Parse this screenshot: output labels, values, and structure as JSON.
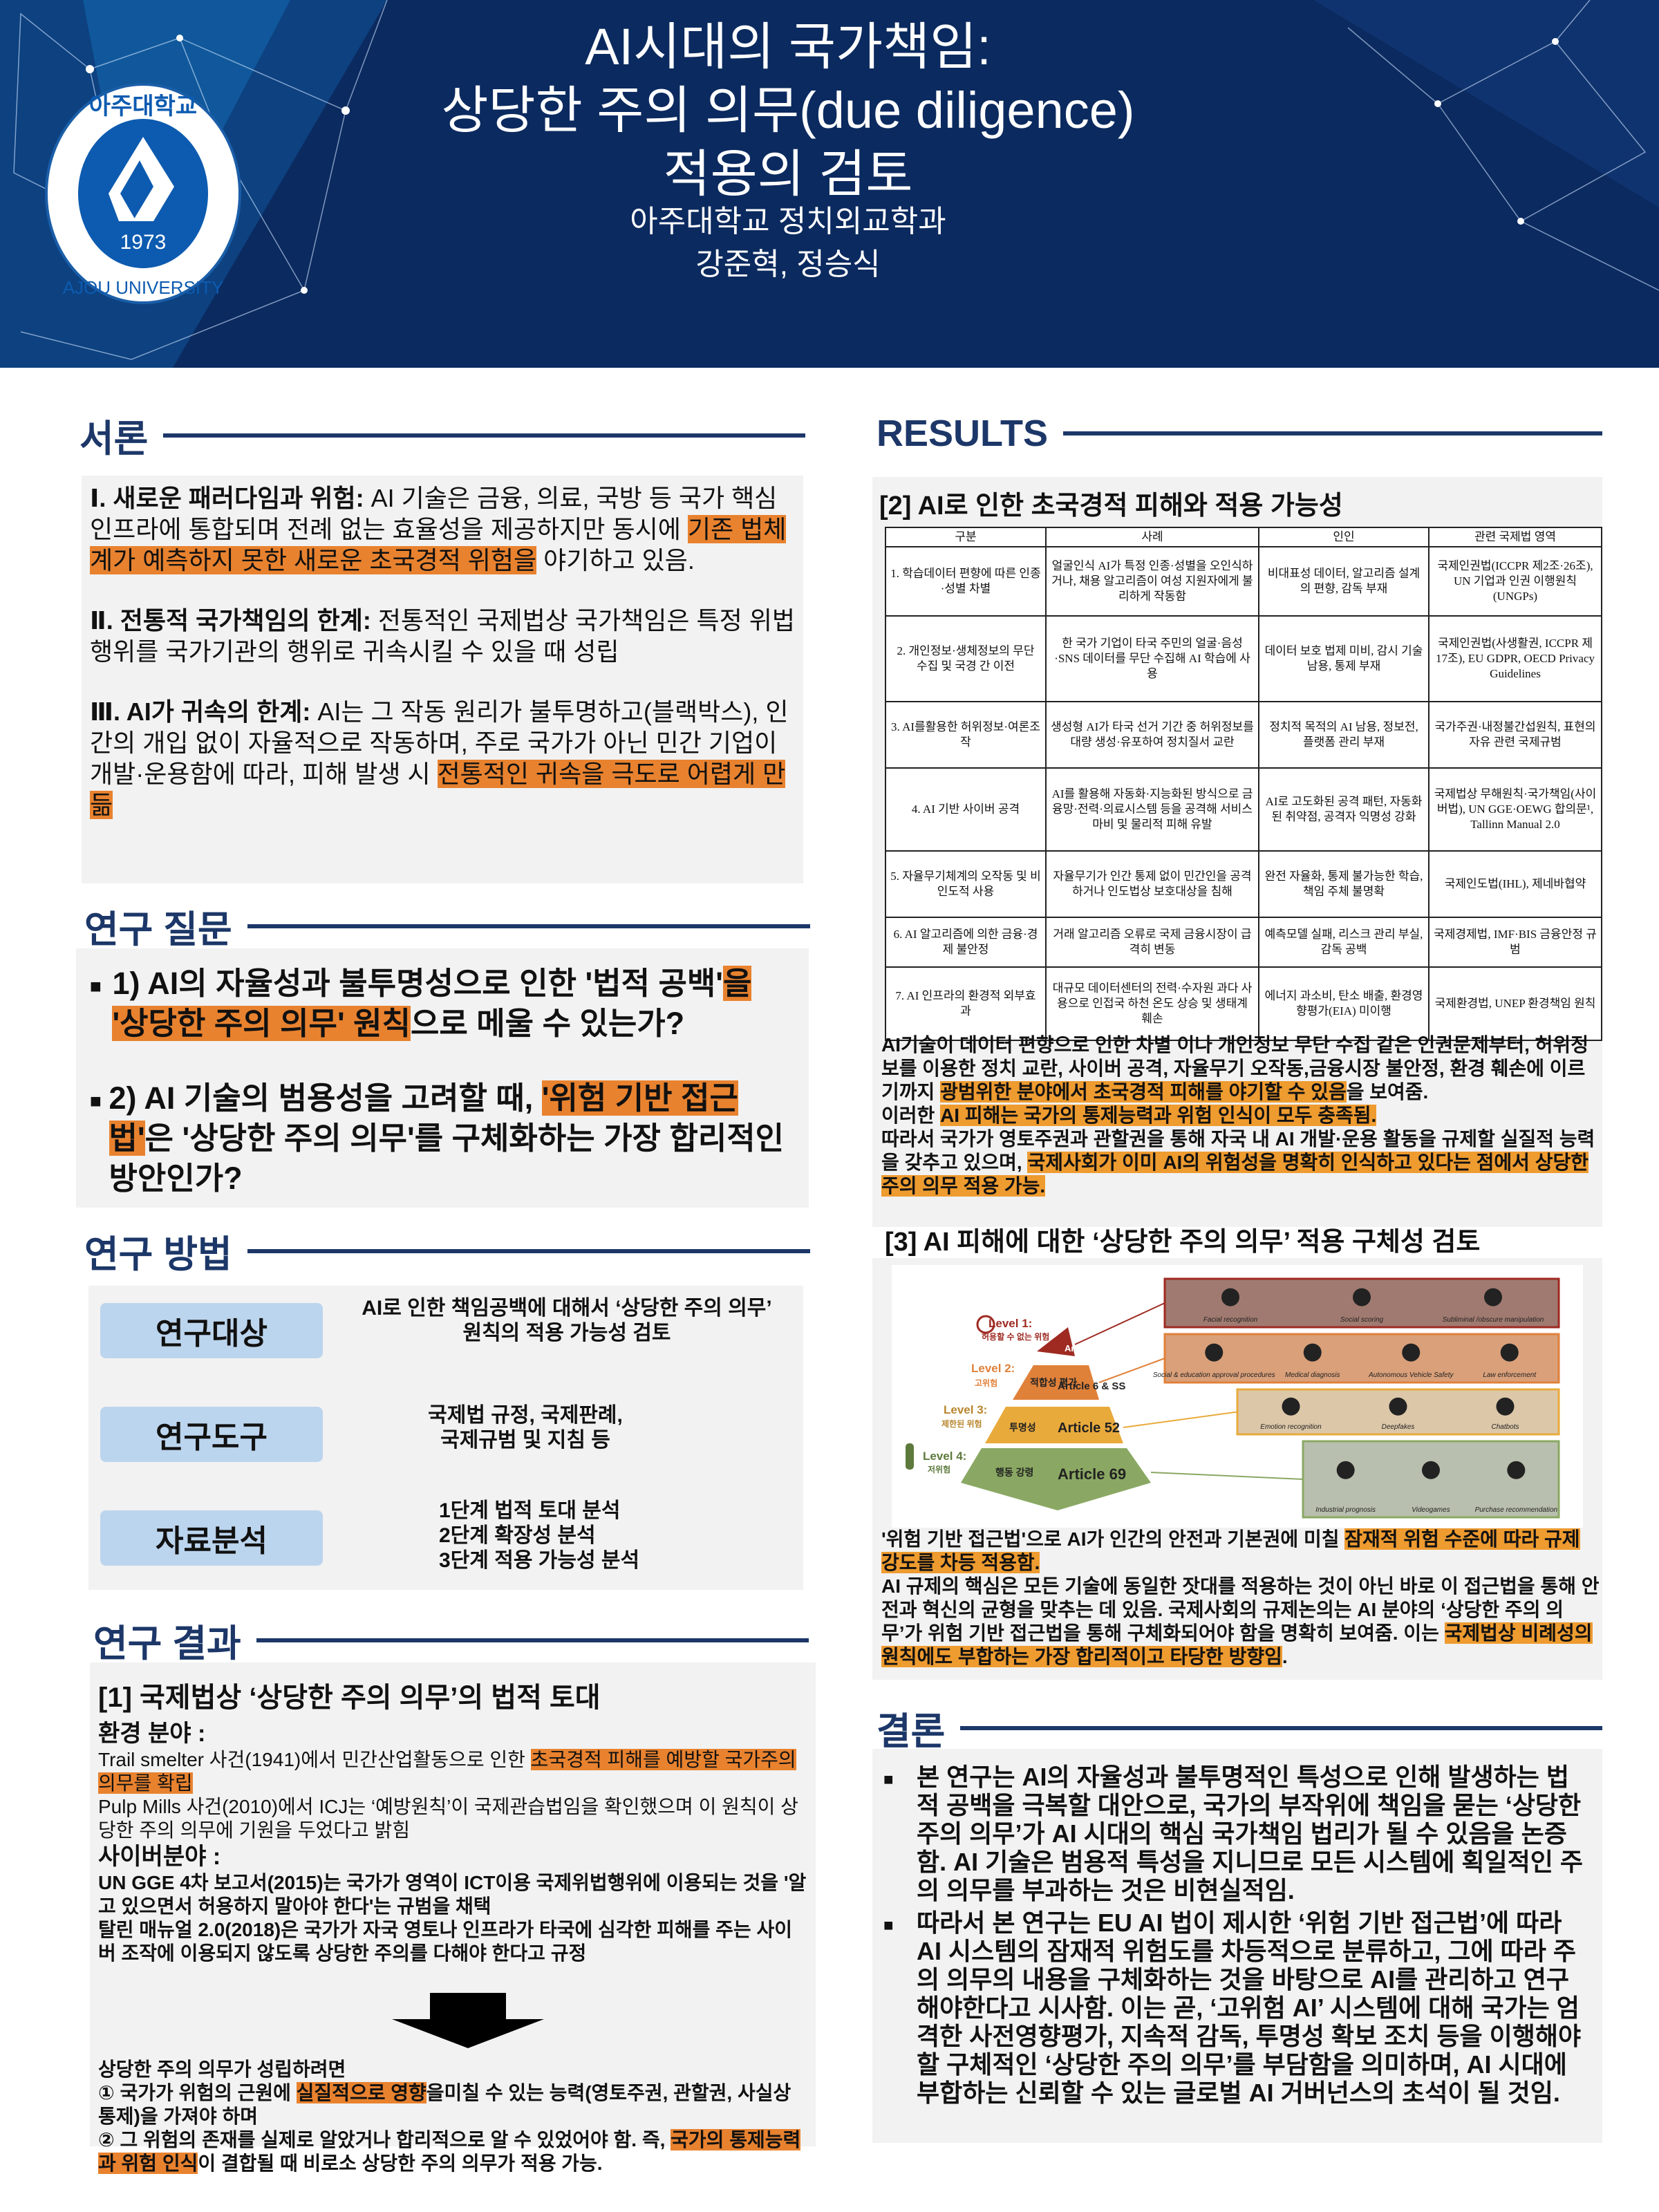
{
  "header": {
    "title_lines": [
      "AI시대의 국가책임:",
      "상당한 주의 의무(due diligence)",
      "적용의 검토"
    ],
    "affiliation": "아주대학교 정치외교학과",
    "authors": "강준혁, 정승식",
    "logo": {
      "korean": "아주대학교",
      "english": "AJOU UNIVERSITY",
      "year": "1973"
    }
  },
  "colors": {
    "navy": "#0b2a5f",
    "heading": "#1c3768",
    "highlight_left": "#e8822f",
    "highlight_right": "#ee9b30",
    "label_blue": "#bcd5ee"
  },
  "intro": {
    "heading": "서론",
    "paragraphs": [
      [
        {
          "t": "Ⅰ. 새로운 패러다임과 위험: ",
          "b": true
        },
        {
          "t": "AI 기술은 금융, 의료, 국방 등 국가 핵심 인프라에 통합되며 전례 없는 효율성을 제공하지만 동시에 "
        },
        {
          "t": "기존 법체계가 예측하지 못한 새로운 초국경적 위험을",
          "hl": true
        },
        {
          "t": " 야기하고 있음."
        }
      ],
      [
        {
          "t": "Ⅱ. 전통적 국가책임의 한계: ",
          "b": true
        },
        {
          "t": "전통적인 국제법상 국가책임은 특정 위법행위를 국가기관의 행위로 귀속시킬 수 있을 때 성립"
        }
      ],
      [
        {
          "t": "Ⅲ. AI가 귀속의 한계: ",
          "b": true
        },
        {
          "t": "AI는 그 작동 원리가 불투명하고(블랙박스), 인간의 개입 없이 자율적으로 작동하며, 주로 국가가 아닌 민간 기업이 개발·운용함에 따라, 피해 발생 시 "
        },
        {
          "t": "전통적인 귀속을 극도로 어렵게 만듦",
          "hl": true
        }
      ]
    ]
  },
  "questions": {
    "heading": "연구 질문",
    "items": [
      [
        {
          "t": "1) AI의 자율성과 불투명성으로 인한 '법적 공백'"
        },
        {
          "t": "을 '상당한 주의 의무' 원칙",
          "hl": true
        },
        {
          "t": "으로 메울 수 있는가?"
        }
      ],
      [
        {
          "t": "2) AI 기술의 범용성을 고려할 때, "
        },
        {
          "t": "'위험 기반 접근법'",
          "hl": true
        },
        {
          "t": "은 '상당한 주의 의무'를 구체화하는 가장 합리적인 방안인가?"
        }
      ]
    ]
  },
  "methods": {
    "heading": "연구 방법",
    "rows": [
      {
        "label": "연구대상",
        "text": [
          "AI로 인한 책임공백에 대해서 ‘상당한 주의 의무’",
          "원칙의 적용 가능성 검토"
        ]
      },
      {
        "label": "연구도구",
        "text": [
          "국제법 규정, 국제판례,",
          "국제규범 및 지침 등"
        ]
      },
      {
        "label": "자료분석",
        "text": [
          "1단계  법적 토대 분석",
          "2단계  확장성 분석",
          "3단계  적용 가능성 분석"
        ]
      }
    ]
  },
  "results_left": {
    "heading": "연구 결과",
    "title": "[1] 국제법상 ‘상당한 주의 의무’의 법적 토대",
    "env_head": "환경 분야 :",
    "env": [
      [
        {
          "t": "Trail smelter 사건(1941)에서 민간산업활동으로 인한 "
        },
        {
          "t": "초국경적 피해를 예방할 국가주의의무를 확립",
          "hl": true
        }
      ],
      [
        {
          "t": "  Pulp Mills 사건(2010)에서 ICJ는 ‘예방원칙’이 국제관습법임을 확인했으며 이 원칙이 상당한 주의 의무에 기원을 두었다고 밝힘"
        }
      ]
    ],
    "cyber_head": "사이버분야 :",
    "cyber": [
      [
        {
          "t": "  UN GGE 4차 보고서(2015)는 국가가 영역이 ICT이용 국제위법행위에 이용되는 것을 '알고 있으면서 허용하지 말아야 한다'는 규범을 채택"
        }
      ],
      [
        {
          "t": "  탈린 매뉴얼 2.0(2018)은 국가가 자국 영토나 인프라가 타국에 심각한 피해를 주는 사이버 조작에 이용되지 않도록 상당한 주의를 다해야 한다고 규정"
        }
      ]
    ],
    "conclusion": [
      [
        {
          "t": "상당한 주의 의무가 성립하려면"
        }
      ],
      [
        {
          "t": "① 국가가 위험의 근원에 "
        },
        {
          "t": "실질적으로 영향",
          "hl": true
        },
        {
          "t": "을미칠 수 있는 능력(영토주권, 관할권, 사실상 통제)을 가져야 하며"
        }
      ],
      [
        {
          "t": "② 그 위험의 존재를 실제로 알았거나 합리적으로 알 수 있었어야 함. 즉, "
        },
        {
          "t": "국가의 통제능력과 위험 인식",
          "hl": true
        },
        {
          "t": "이 결합될 때 비로소 상당한 주의 의무가 적용 가능."
        }
      ]
    ]
  },
  "results_right": {
    "heading": "RESULTS",
    "sub2": "[2] AI로 인한 초국경적 피해와 적용 가능성",
    "table": {
      "headers": [
        "구분",
        "사례",
        "인인",
        "관련 국제법 영역"
      ],
      "rows": [
        [
          "1. 학습데이터 편향에 따른 인종·성별 차별",
          "얼굴인식 AI가 특정 인종·성별을 오인식하거나, 채용 알고리즘이 여성 지원자에게 불리하게 작동함",
          "비대표성 데이터, 알고리즘 설계의 편향, 감독 부재",
          "국제인권법(ICCPR 제2조·26조), UN 기업과 인권 이행원칙(UNGPs)"
        ],
        [
          "2. 개인정보·생체정보의 무단 수집 및 국경 간 이전",
          "한 국가 기업이 타국 주민의 얼굴·음성·SNS 데이터를 무단 수집해 AI 학습에 사용",
          "데이터 보호 법제 미비, 감시 기술 남용, 통제 부재",
          "국제인권법(사생활권, ICCPR 제17조), EU GDPR, OECD Privacy Guidelines"
        ],
        [
          "3. AI를활용한 허위정보·여론조작",
          "생성형 AI가 타국 선거 기간 중 허위정보를 대량 생성·유포하여 정치질서 교란",
          "정치적 목적의 AI 남용, 정보전, 플랫폼 관리 부재",
          "국가주권·내정불간섭원칙, 표현의 자유 관련 국제규범"
        ],
        [
          "4. AI 기반 사이버 공격",
          "AI를 활용해 자동화·지능화된 방식으로 금융망·전력·의료시스템 등을 공격해 서비스 마비 및 물리적 피해 유발",
          "AI로 고도화된 공격 패턴, 자동화된 취약점, 공격자 익명성 강화",
          "국제법상 무해원칙·국가책임(사이버법), UN GGE·OEWG 합의문¹, Tallinn Manual 2.0"
        ],
        [
          "5. 자율무기체계의 오작동 및 비인도적 사용",
          "자율무기가 인간 통제 없이 민간인을 공격하거나 인도법상 보호대상을 침해",
          "완전 자율화, 통제 불가능한 학습, 책임 주체 불명확",
          "국제인도법(IHL), 제네바협약"
        ],
        [
          "6. AI 알고리즘에 의한 금융·경제 불안정",
          "거래 알고리즘 오류로 국제 금융시장이 급격히 변동",
          "예측모델 실패, 리스크 관리 부실, 감독 공백",
          "국제경제법, IMF·BIS 금융안정 규범"
        ],
        [
          "7. AI 인프라의 환경적 외부효과",
          "대규모 데이터센터의 전력·수자원 과다 사용으로 인접국 하천 온도 상승 및 생태계 훼손",
          "에너지 과소비, 탄소 배출, 환경영향평가(EIA) 미이행",
          "국제환경법, UNEP 환경책임 원칙"
        ]
      ]
    },
    "text2": [
      [
        {
          "t": "  AI기술이 데이터 편향으로 인한 차별 이나 개인정보 무단 수집 같은 인권문제부터, 허위정보를 이용한 정치 교란, 사이버 공격, 자율무기 오작동,금융시장 불안정, 환경 훼손에 이르기까지 "
        },
        {
          "t": "광범위한 분야에서 초국경적 피해를 야기할 수 있음",
          "hl": true
        },
        {
          "t": "을 보여줌."
        }
      ],
      [
        {
          "t": "이러한 "
        },
        {
          "t": "AI 피해는 국가의 통제능력과 위험 인식이 모두 충족됨.",
          "hl": true
        }
      ],
      [
        {
          "t": "따라서 국가가 영토주권과 관할권을 통해 자국 내 AI 개발·운용 활동을 규제할 실질적 능력을 갖추고 있으며, "
        },
        {
          "t": "국제사회가 이미 AI의 위험성을 명확히 인식하고 있다는 점에서 상당한 주의 의무 적용 가능.",
          "hl": true
        }
      ]
    ],
    "sub3": "[3] AI 피해에 대한 ‘상당한 주의 의무’ 적용 구체성 검토",
    "pyramid": {
      "levels": [
        {
          "name": "Level 1:",
          "desc": "허용할 수 없는 위험",
          "tier": "",
          "article": "Art. 5",
          "color": "#9e2a22",
          "box_color": "#a07a70",
          "examples": [
            "Facial recognition",
            "Social scoring",
            "Subliminal /obscure manipulation"
          ]
        },
        {
          "name": "Level 2:",
          "desc": "고위험",
          "tier": "적합성 평가",
          "article": "Article 6 & SS",
          "color": "#e0813a",
          "box_color": "#d9a07a",
          "examples": [
            "Social & education approval procedures",
            "Medical diagnosis",
            "Autonomous Vehicle Safety",
            "Law enforcement"
          ]
        },
        {
          "name": "Level 3:",
          "desc": "제한된 위험",
          "tier": "투명성",
          "article": "Article 52",
          "color": "#e9aa3c",
          "box_color": "#dcc7a8",
          "examples": [
            "Emotion recognition",
            "Deepfakes",
            "Chatbots"
          ]
        },
        {
          "name": "Level 4:",
          "desc": "저위험",
          "tier": "행동 강령",
          "article": "Article 69",
          "color": "#8aa863",
          "box_color": "#b9bfae",
          "examples": [
            "Industrial prognosis",
            "Videogames",
            "Purchase recommendation"
          ]
        }
      ]
    },
    "text3": [
      [
        {
          "t": " '위험 기반 접근법'으로 AI가 인간의 안전과 기본권에 미칠 "
        },
        {
          "t": "잠재적 위험 수준에 따라 규제 강도를 차등 적용함.",
          "hl": true
        }
      ],
      [
        {
          "t": "AI 규제의 핵심은 모든 기술에 동일한 잣대를 적용하는 것이 아닌 바로 이 접근법을 통해 안전과 혁신의 균형을 맞추는 데 있음. 국제사회의 규제논의는 AI 분야의 ‘상당한 주의 의무’가 위험 기반 접근법을 통해 구체화되어야 함을 명확히 보여줌. 이는 "
        },
        {
          "t": "국제법상 비례성의 원칙에도 부합하는 가장 합리적이고 타당한 방향임",
          "hl": true
        },
        {
          "t": "."
        }
      ]
    ]
  },
  "conclusion": {
    "heading": "결론",
    "items": [
      "본 연구는 AI의 자율성과 불투명적인 특성으로 인해 발생하는 법적 공백을 극복할 대안으로, 국가의 부작위에 책임을 묻는 ‘상당한 주의 의무’가 AI 시대의 핵심 국가책임 법리가 될 수 있음을 논증함. AI 기술은 범용적 특성을 지니므로 모든 시스템에 획일적인 주의 의무를 부과하는 것은 비현실적임.",
      "따라서 본 연구는 EU AI 법이 제시한 ‘위험 기반 접근법’에 따라 AI 시스템의 잠재적 위험도를 차등적으로 분류하고, 그에 따라 주의 의무의 내용을 구체화하는 것을 바탕으로 AI를 관리하고 연구해야한다고 시사함. 이는 곧, ‘고위험 AI’ 시스템에 대해 국가는 엄격한 사전영향평가, 지속적 감독, 투명성 확보 조치 등을 이행해야 할 구체적인 ‘상당한 주의 의무’를 부담함을 의미하며, AI 시대에 부합하는 신뢰할 수 있는 글로벌 AI 거버넌스의 초석이 될 것임."
    ]
  }
}
